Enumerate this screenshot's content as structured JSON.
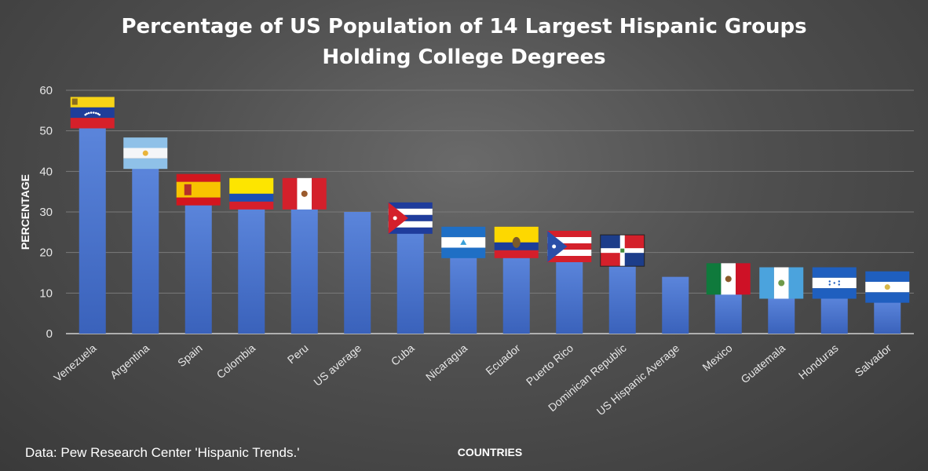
{
  "chart_data": {
    "type": "bar",
    "title_line1": "Percentage of US Population of 14 Largest Hispanic Groups",
    "title_line2": "Holding College Degrees",
    "xlabel": "COUNTRIES",
    "ylabel": "PERCENTAGE",
    "ylim": [
      0,
      60
    ],
    "yticks": [
      0,
      10,
      20,
      30,
      40,
      50,
      60
    ],
    "grid": true,
    "legend": "none",
    "bar_color": "#4a74cc",
    "source_note": "Data: Pew Research Center 'Hispanic Trends.'",
    "categories": [
      "Venezuela",
      "Argentina",
      "Spain",
      "Colombia",
      "Peru",
      "US average",
      "Cuba",
      "Nicaragua",
      "Ecuador",
      "Puerto Rico",
      "Dominican Republic",
      "US Hispanic Average",
      "Mexico",
      "Guatemala",
      "Honduras",
      "Salvador"
    ],
    "values": [
      51,
      41,
      32,
      31,
      31,
      30,
      25,
      19,
      19,
      18,
      17,
      14,
      10,
      9,
      9,
      8
    ],
    "flags": [
      "venezuela-flag",
      "argentina-flag",
      "spain-flag",
      "colombia-flag",
      "peru-flag",
      "",
      "cuba-flag",
      "nicaragua-flag",
      "ecuador-flag",
      "puerto-rico-flag",
      "dominican-republic-flag",
      "",
      "mexico-flag",
      "guatemala-flag",
      "honduras-flag",
      "el-salvador-flag"
    ]
  }
}
